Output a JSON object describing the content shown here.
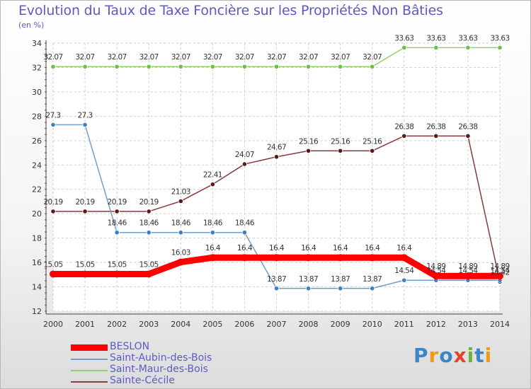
{
  "title": "Evolution du Taux de Taxe Foncière sur les Propriétés Non Bâties",
  "subtitle": "(en %)",
  "logo": {
    "letters": [
      "P",
      "r",
      "o",
      "x",
      "i",
      "t",
      "i"
    ],
    "colors": [
      "#3a87c8",
      "#f29a1a",
      "#3a87c8",
      "#e8402a",
      "#6db33f",
      "#3a87c8",
      "#f29a1a"
    ]
  },
  "chart_data": {
    "type": "line",
    "x": [
      "2000",
      "2001",
      "2002",
      "2003",
      "2004",
      "2005",
      "2006",
      "2007",
      "2008",
      "2009",
      "2010",
      "2011",
      "2012",
      "2013",
      "2014"
    ],
    "ylim": [
      12,
      34
    ],
    "yticks": [
      12,
      14,
      16,
      18,
      20,
      22,
      24,
      26,
      28,
      30,
      32,
      34
    ],
    "grid": true,
    "legend_position": "bottom-left",
    "series": [
      {
        "name": "BESLON",
        "color": "#ff0000",
        "marker": "#ff0000",
        "values": [
          15.05,
          15.05,
          15.05,
          15.05,
          16.03,
          16.4,
          16.4,
          16.4,
          16.4,
          16.4,
          16.4,
          16.4,
          14.89,
          14.89,
          14.89
        ],
        "labels": [
          "15.05",
          "15.05",
          "15.05",
          "15.05",
          "16.03",
          "16.4",
          "16.4",
          "16.4",
          "16.4",
          "16.4",
          "16.4",
          "16.4",
          "14.89",
          "14.89",
          "14.89"
        ]
      },
      {
        "name": "Saint-Aubin-des-Bois",
        "color": "#6e9fcf",
        "marker": "#3d7fc1",
        "values": [
          27.3,
          27.3,
          18.46,
          18.46,
          18.46,
          18.46,
          18.46,
          13.87,
          13.87,
          13.87,
          13.87,
          14.54,
          14.54,
          14.54,
          14.54
        ],
        "labels": [
          "27.3",
          "27.3",
          "18.46",
          "18.46",
          "18.46",
          "18.46",
          "18.46",
          "13.87",
          "13.87",
          "13.87",
          "13.87",
          "14.54",
          "14.54",
          "14.54",
          "14.54"
        ]
      },
      {
        "name": "Saint-Maur-des-Bois",
        "color": "#8fd16a",
        "marker": "#6bc23f",
        "values": [
          32.07,
          32.07,
          32.07,
          32.07,
          32.07,
          32.07,
          32.07,
          32.07,
          32.07,
          32.07,
          32.07,
          33.63,
          33.63,
          33.63,
          33.63
        ],
        "labels": [
          "32.07",
          "32.07",
          "32.07",
          "32.07",
          "32.07",
          "32.07",
          "32.07",
          "32.07",
          "32.07",
          "32.07",
          "32.07",
          "33.63",
          "33.63",
          "33.63",
          "33.63"
        ]
      },
      {
        "name": "Sainte-Cécile",
        "color": "#8a3a3a",
        "marker": "#5a1a1a",
        "values": [
          20.19,
          20.19,
          20.19,
          20.19,
          21.03,
          22.41,
          24.07,
          24.67,
          25.16,
          25.16,
          25.16,
          26.38,
          26.38,
          26.38,
          14.42
        ],
        "labels": [
          "20.19",
          "20.19",
          "20.19",
          "20.19",
          "21.03",
          "22.41",
          "24.07",
          "24.67",
          "25.16",
          "25.16",
          "25.16",
          "26.38",
          "26.38",
          "26.38",
          "14.42"
        ]
      }
    ]
  }
}
